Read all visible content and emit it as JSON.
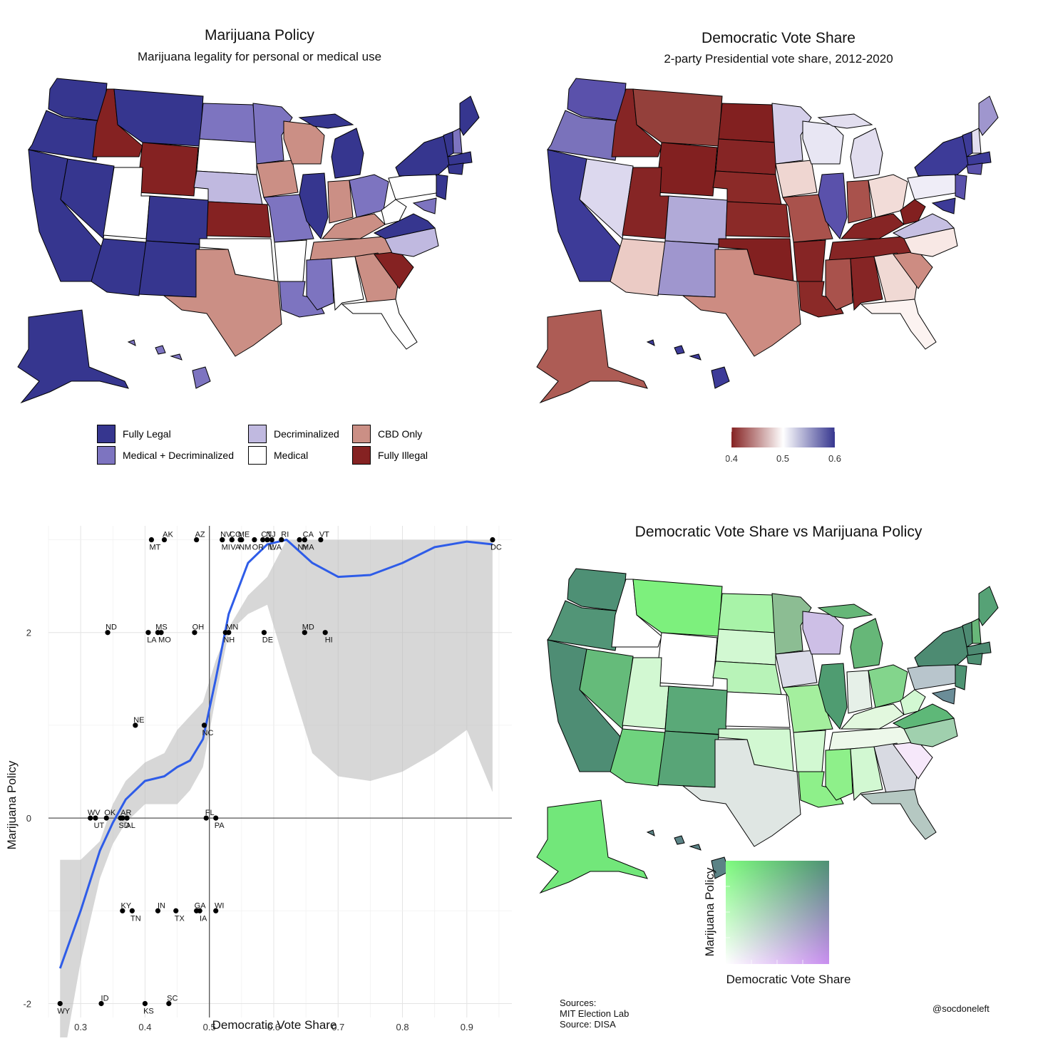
{
  "panel1": {
    "title": "Marijuana Policy",
    "subtitle": "Marijuana legality for personal or medical use",
    "legend": [
      {
        "label": "Fully Legal",
        "color": "#36368f"
      },
      {
        "label": "Medical + Decriminalized",
        "color": "#7d74c0"
      },
      {
        "label": "Decriminalized",
        "color": "#c0b9e0"
      },
      {
        "label": "Medical",
        "color": "#ffffff"
      },
      {
        "label": "CBD Only",
        "color": "#cb8f85"
      },
      {
        "label": "Fully Illegal",
        "color": "#852222"
      }
    ]
  },
  "panel2": {
    "title": "Democratic Vote Share",
    "subtitle": "2-party Presidential vote share, 2012-2020",
    "colorbar": {
      "ticks": [
        "0.4",
        "0.5",
        "0.6"
      ],
      "low_color": "#852222",
      "mid_color": "#ffffff",
      "high_color": "#36368f"
    }
  },
  "panel4": {
    "title": "Democratic Vote Share vs Marijuana Policy",
    "legend_ylabel": "Marijuana Policy",
    "legend_xlabel": "Democratic Vote Share",
    "corner_colors": {
      "top_left": "#7dfb7d",
      "top_right": "#4d8f73",
      "bottom_left": "#ffffff",
      "bottom_right": "#c98ef0"
    },
    "sources": [
      "Sources:",
      "MIT Election Lab",
      "Source: DISA"
    ],
    "credit": "@socdoneleft"
  },
  "chart_data": {
    "type": "scatter",
    "xlabel": "Democratic Vote Share",
    "ylabel": "Marijuana Policy",
    "xlim": [
      0.25,
      0.97
    ],
    "ylim": [
      -2.15,
      3.15
    ],
    "xticks": [
      0.3,
      0.4,
      0.5,
      0.6,
      0.7,
      0.8,
      0.9
    ],
    "yticks": [
      -2,
      0,
      2
    ],
    "grid": true,
    "points": [
      {
        "state": "AK",
        "x": 0.43,
        "y": 3
      },
      {
        "state": "MT",
        "x": 0.41,
        "y": 3
      },
      {
        "state": "AZ",
        "x": 0.48,
        "y": 3
      },
      {
        "state": "MI",
        "x": 0.52,
        "y": 3
      },
      {
        "state": "NV",
        "x": 0.52,
        "y": 3
      },
      {
        "state": "VA",
        "x": 0.535,
        "y": 3
      },
      {
        "state": "CO",
        "x": 0.535,
        "y": 3
      },
      {
        "state": "NM",
        "x": 0.55,
        "y": 3
      },
      {
        "state": "ME",
        "x": 0.548,
        "y": 3
      },
      {
        "state": "OR",
        "x": 0.57,
        "y": 3
      },
      {
        "state": "CT",
        "x": 0.583,
        "y": 3
      },
      {
        "state": "IL",
        "x": 0.59,
        "y": 3
      },
      {
        "state": "NJ",
        "x": 0.59,
        "y": 3
      },
      {
        "state": "WA",
        "x": 0.597,
        "y": 3
      },
      {
        "state": "RI",
        "x": 0.612,
        "y": 3
      },
      {
        "state": "NY",
        "x": 0.64,
        "y": 3
      },
      {
        "state": "CA",
        "x": 0.648,
        "y": 3
      },
      {
        "state": "MA",
        "x": 0.648,
        "y": 3
      },
      {
        "state": "VT",
        "x": 0.673,
        "y": 3
      },
      {
        "state": "DC",
        "x": 0.94,
        "y": 3
      },
      {
        "state": "ND",
        "x": 0.342,
        "y": 2
      },
      {
        "state": "LA",
        "x": 0.405,
        "y": 2
      },
      {
        "state": "MS",
        "x": 0.42,
        "y": 2
      },
      {
        "state": "MO",
        "x": 0.425,
        "y": 2
      },
      {
        "state": "OH",
        "x": 0.477,
        "y": 2
      },
      {
        "state": "NH",
        "x": 0.525,
        "y": 2
      },
      {
        "state": "MN",
        "x": 0.53,
        "y": 2
      },
      {
        "state": "DE",
        "x": 0.585,
        "y": 2
      },
      {
        "state": "MD",
        "x": 0.648,
        "y": 2
      },
      {
        "state": "HI",
        "x": 0.68,
        "y": 2
      },
      {
        "state": "NE",
        "x": 0.385,
        "y": 1
      },
      {
        "state": "NC",
        "x": 0.492,
        "y": 1
      },
      {
        "state": "WV",
        "x": 0.315,
        "y": 0
      },
      {
        "state": "UT",
        "x": 0.323,
        "y": 0
      },
      {
        "state": "OK",
        "x": 0.34,
        "y": 0
      },
      {
        "state": "SD",
        "x": 0.362,
        "y": 0
      },
      {
        "state": "AR",
        "x": 0.365,
        "y": 0
      },
      {
        "state": "AL",
        "x": 0.372,
        "y": 0
      },
      {
        "state": "FL",
        "x": 0.495,
        "y": 0
      },
      {
        "state": "PA",
        "x": 0.51,
        "y": 0
      },
      {
        "state": "KY",
        "x": 0.365,
        "y": -1
      },
      {
        "state": "TN",
        "x": 0.38,
        "y": -1
      },
      {
        "state": "IN",
        "x": 0.42,
        "y": -1
      },
      {
        "state": "TX",
        "x": 0.448,
        "y": -1
      },
      {
        "state": "GA",
        "x": 0.48,
        "y": -1
      },
      {
        "state": "IA",
        "x": 0.485,
        "y": -1
      },
      {
        "state": "WI",
        "x": 0.51,
        "y": -1
      },
      {
        "state": "WY",
        "x": 0.268,
        "y": -2
      },
      {
        "state": "ID",
        "x": 0.332,
        "y": -2
      },
      {
        "state": "KS",
        "x": 0.4,
        "y": -2
      },
      {
        "state": "SC",
        "x": 0.437,
        "y": -2
      }
    ],
    "smooth": {
      "x": [
        0.268,
        0.3,
        0.33,
        0.35,
        0.37,
        0.4,
        0.43,
        0.45,
        0.47,
        0.49,
        0.51,
        0.53,
        0.56,
        0.59,
        0.62,
        0.66,
        0.7,
        0.75,
        0.8,
        0.85,
        0.9,
        0.94
      ],
      "y": [
        -1.62,
        -1.0,
        -0.35,
        -0.05,
        0.2,
        0.4,
        0.45,
        0.55,
        0.62,
        0.85,
        1.5,
        2.2,
        2.75,
        2.95,
        3.0,
        2.75,
        2.6,
        2.62,
        2.75,
        2.92,
        2.98,
        2.95
      ],
      "upper": [
        -0.45,
        -0.45,
        -0.25,
        0.15,
        0.4,
        0.6,
        0.7,
        0.95,
        1.1,
        1.25,
        1.7,
        2.05,
        2.4,
        2.6,
        3.0,
        3.0,
        3.0,
        3.0,
        3.0,
        3.0,
        3.0,
        3.0
      ],
      "lower": [
        -2.8,
        -1.55,
        -0.65,
        -0.28,
        -0.05,
        0.15,
        0.15,
        0.15,
        0.3,
        0.55,
        1.3,
        2.0,
        2.2,
        2.3,
        1.6,
        0.7,
        0.45,
        0.4,
        0.5,
        0.7,
        0.95,
        0.28
      ],
      "color": "#2e5ce8"
    }
  }
}
